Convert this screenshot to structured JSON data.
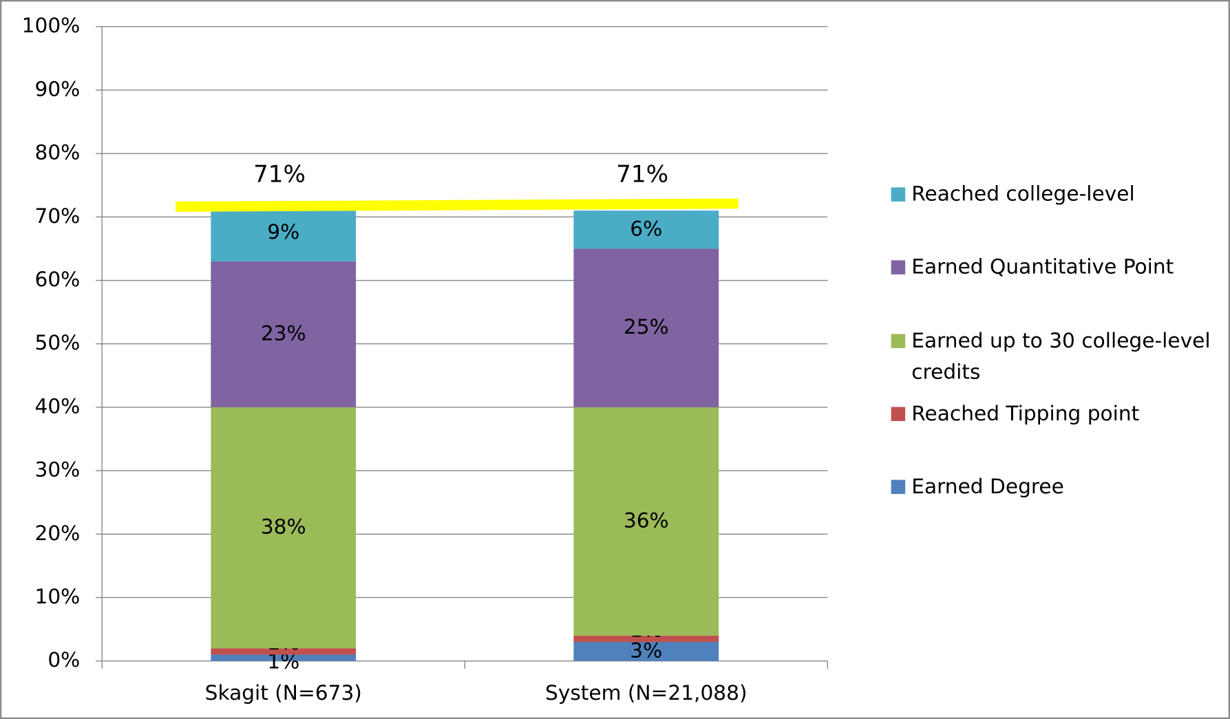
{
  "chart_data": {
    "type": "stacked_bar",
    "categories": [
      "Skagit (N=673)",
      "System (N=21,088)"
    ],
    "series": [
      {
        "name": "Earned Degree",
        "color": "#4f81bd",
        "values": [
          1,
          3
        ],
        "value_labels": [
          "1%",
          "3%"
        ]
      },
      {
        "name": "Reached Tipping point",
        "color": "#c0504d",
        "values": [
          1,
          1
        ],
        "value_labels": [
          "1%",
          "1%"
        ]
      },
      {
        "name": "Earned up to 30 college-level credits",
        "color": "#9bbb59",
        "values": [
          38,
          36
        ],
        "value_labels": [
          "38%",
          "36%"
        ]
      },
      {
        "name": "Earned Quantitative Point",
        "color": "#8064a2",
        "values": [
          23,
          25
        ],
        "value_labels": [
          "23%",
          "25%"
        ]
      },
      {
        "name": "Reached college-level",
        "color": "#4bacc6",
        "values": [
          9,
          6
        ],
        "value_labels": [
          "9%",
          "6%"
        ]
      }
    ],
    "totals": [
      71,
      71
    ],
    "total_labels": [
      "71%",
      "71%"
    ],
    "total_line_color": "#ffff00",
    "ylim": [
      0,
      100
    ],
    "yticks": [
      {
        "value": 0,
        "label": "0%"
      },
      {
        "value": 10,
        "label": "10%"
      },
      {
        "value": 20,
        "label": "20%"
      },
      {
        "value": 30,
        "label": "30%"
      },
      {
        "value": 40,
        "label": "40%"
      },
      {
        "value": 50,
        "label": "50%"
      },
      {
        "value": 60,
        "label": "60%"
      },
      {
        "value": 70,
        "label": "70%"
      },
      {
        "value": 80,
        "label": "80%"
      },
      {
        "value": 90,
        "label": "90%"
      },
      {
        "value": 100,
        "label": "100%"
      }
    ],
    "grid": true,
    "legend": "right"
  }
}
